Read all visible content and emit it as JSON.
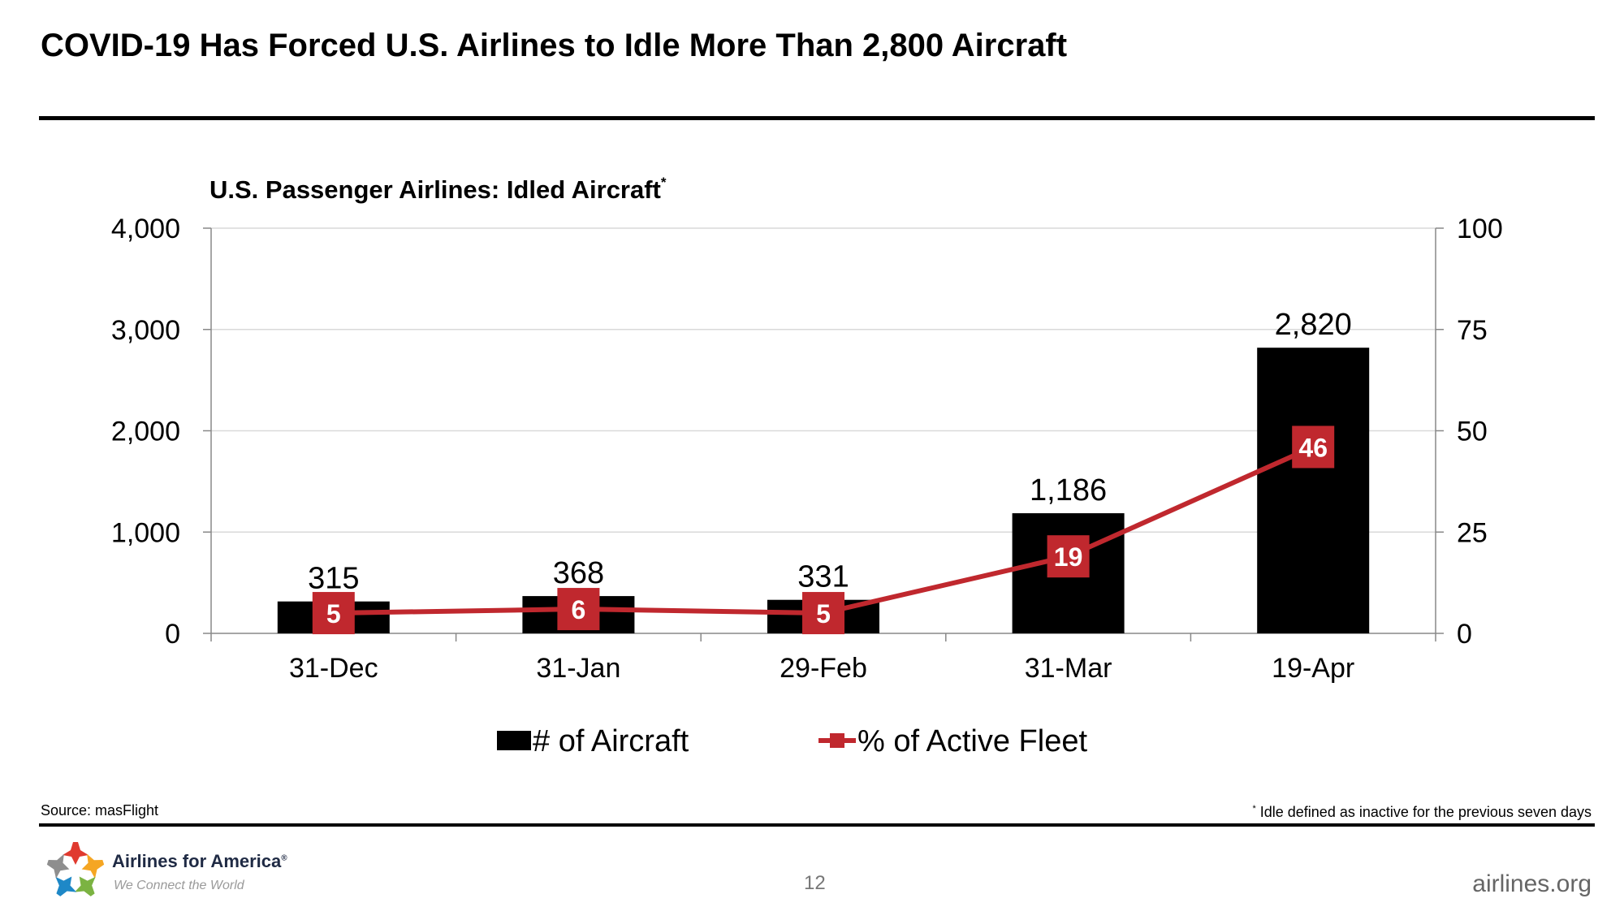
{
  "page": {
    "title": "COVID-19 Has Forced U.S. Airlines to Idle More Than 2,800 Aircraft",
    "source": "Source: masFlight",
    "footnote_mark": "*",
    "footnote": "Idle defined as inactive for the previous seven days",
    "page_number": "12",
    "website": "airlines.org"
  },
  "brand": {
    "name": "Airlines for America",
    "registered_mark": "®",
    "tagline": "We Connect the World",
    "colors": [
      "#e03a2f",
      "#f5a623",
      "#7bb342",
      "#1e88c7",
      "#8e8e8e"
    ]
  },
  "chart_data": {
    "type": "bar",
    "title": "U.S. Passenger Airlines: Idled Aircraft",
    "title_mark": "*",
    "categories": [
      "31-Dec",
      "31-Jan",
      "29-Feb",
      "31-Mar",
      "19-Apr"
    ],
    "series": [
      {
        "name": "# of Aircraft",
        "type": "bar",
        "axis": "left",
        "color": "#000000",
        "values": [
          315,
          368,
          331,
          1186,
          2820
        ],
        "labels": [
          "315",
          "368",
          "331",
          "1,186",
          "2,820"
        ]
      },
      {
        "name": "% of Active Fleet",
        "type": "line",
        "axis": "right",
        "color": "#c0282e",
        "values": [
          5,
          6,
          5,
          19,
          46
        ],
        "labels": [
          "5",
          "6",
          "5",
          "19",
          "46"
        ]
      }
    ],
    "y_left": {
      "ylim": [
        0,
        4000
      ],
      "ticks": [
        0,
        1000,
        2000,
        3000,
        4000
      ],
      "tick_labels": [
        "0",
        "1,000",
        "2,000",
        "3,000",
        "4,000"
      ]
    },
    "y_right": {
      "ylim": [
        0,
        100
      ],
      "ticks": [
        0,
        25,
        50,
        75,
        100
      ],
      "tick_labels": [
        "0",
        "25",
        "50",
        "75",
        "100"
      ]
    },
    "grid": true,
    "legend": "bottom"
  }
}
